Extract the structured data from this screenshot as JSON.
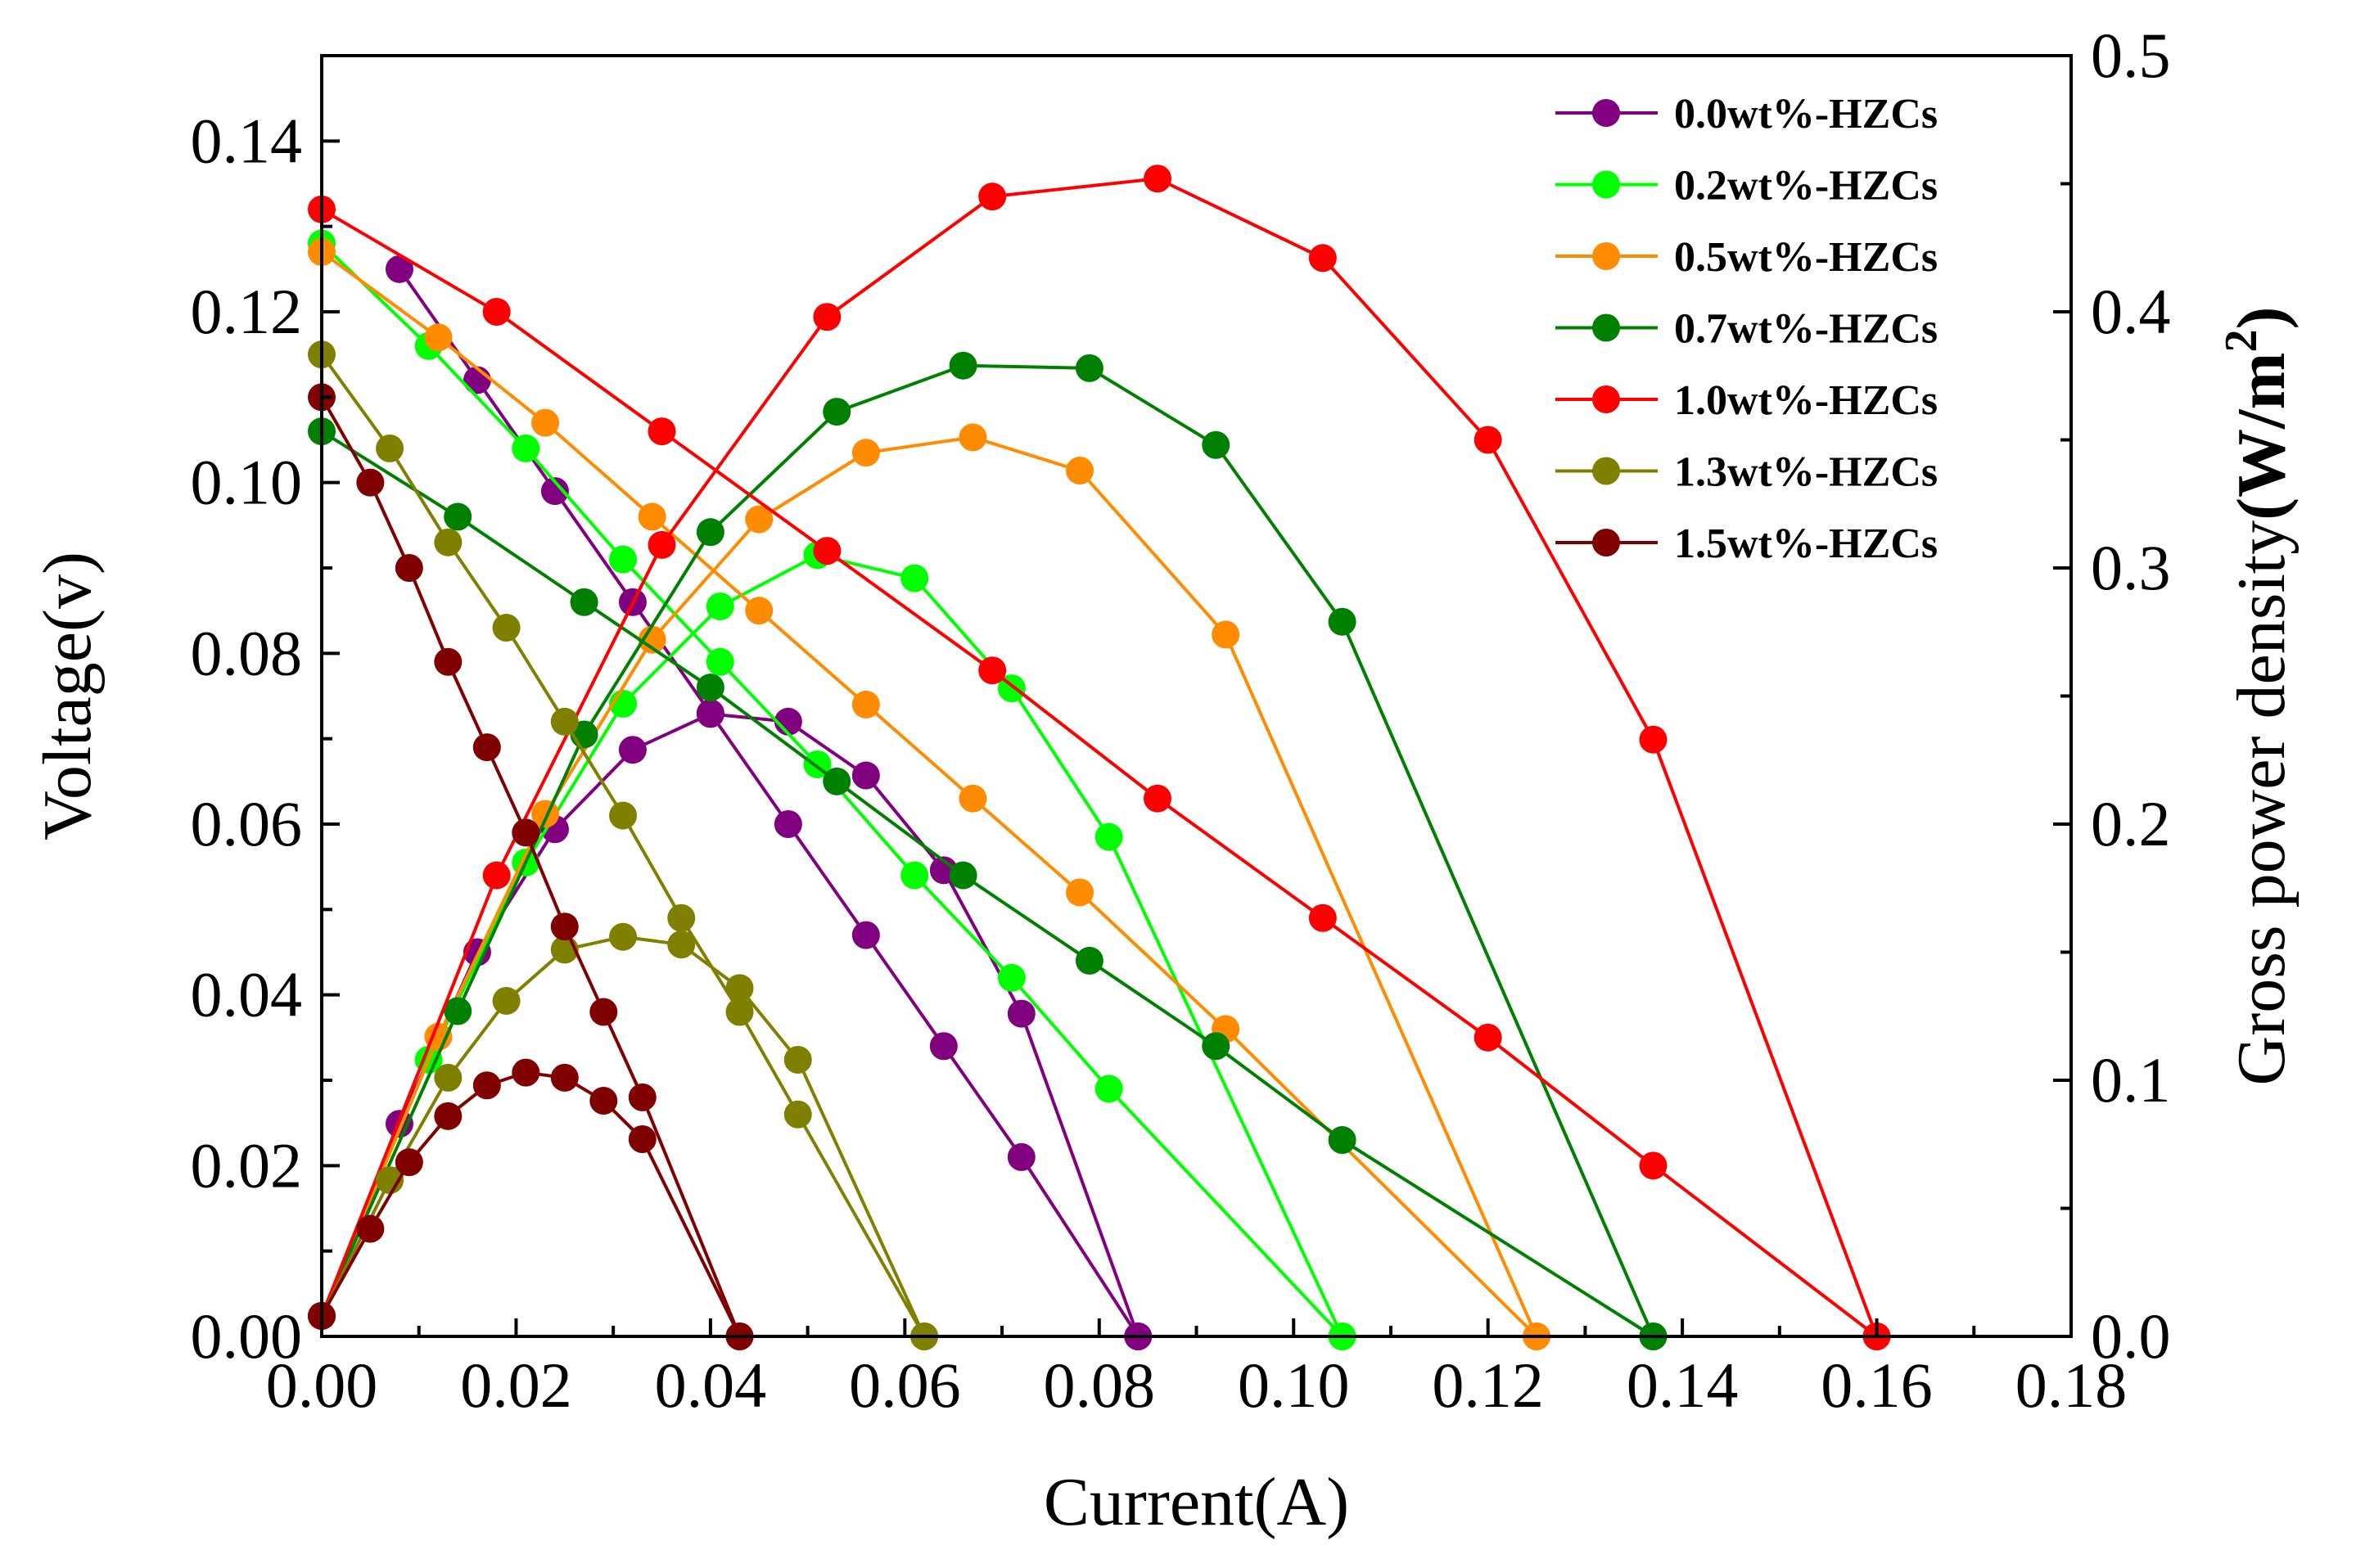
{
  "chart_data": {
    "type": "line",
    "title": "",
    "xlabel": "Current(A)",
    "ylabel_left": "Voltage(v)",
    "ylabel_right_main": "Gross power density",
    "ylabel_right_unit": "(W/m",
    "ylabel_right_sup": "2",
    "ylabel_right_close": ")",
    "xlim": [
      0.0,
      0.18
    ],
    "ylim_left": [
      0.0,
      0.15
    ],
    "ylim_right": [
      0.0,
      0.5
    ],
    "x_ticks": [
      0.0,
      0.02,
      0.04,
      0.06,
      0.08,
      0.1,
      0.12,
      0.14,
      0.16,
      0.18
    ],
    "x_tick_labels": [
      "0.00",
      "0.02",
      "0.04",
      "0.06",
      "0.08",
      "0.10",
      "0.12",
      "0.14",
      "0.16",
      "0.18"
    ],
    "y_left_ticks": [
      0.0,
      0.02,
      0.04,
      0.06,
      0.08,
      0.1,
      0.12,
      0.14
    ],
    "y_left_tick_labels": [
      "0.00",
      "0.02",
      "0.04",
      "0.06",
      "0.08",
      "0.10",
      "0.12",
      "0.14"
    ],
    "y_right_ticks": [
      0.0,
      0.1,
      0.2,
      0.3,
      0.4,
      0.5
    ],
    "y_right_tick_labels": [
      "0.0",
      "0.1",
      "0.2",
      "0.3",
      "0.4",
      "0.5"
    ],
    "legend_position": "top-right",
    "series": [
      {
        "name": "0.0wt%-HZCs",
        "color": "#800080",
        "voltage": {
          "x": [
            0.008,
            0.016,
            0.024,
            0.032,
            0.04,
            0.048,
            0.056,
            0.064,
            0.072,
            0.084
          ],
          "y": [
            0.125,
            0.112,
            0.099,
            0.086,
            0.073,
            0.06,
            0.047,
            0.034,
            0.021,
            0.0
          ]
        },
        "power": {
          "x": [
            0.008,
            0.016,
            0.024,
            0.032,
            0.04,
            0.048,
            0.056,
            0.064,
            0.072,
            0.084
          ],
          "y": [
            0.083,
            0.15,
            0.198,
            0.229,
            0.243,
            0.24,
            0.219,
            0.182,
            0.126,
            0.0
          ]
        }
      },
      {
        "name": "0.2wt%-HZCs",
        "color": "#00FF00",
        "voltage": {
          "x": [
            0.0,
            0.011,
            0.021,
            0.031,
            0.041,
            0.051,
            0.061,
            0.071,
            0.081,
            0.105
          ],
          "y": [
            0.128,
            0.116,
            0.104,
            0.091,
            0.079,
            0.067,
            0.054,
            0.042,
            0.029,
            0.0
          ]
        },
        "power": {
          "x": [
            0.0,
            0.011,
            0.021,
            0.031,
            0.041,
            0.051,
            0.061,
            0.071,
            0.081,
            0.105
          ],
          "y": [
            0.008,
            0.108,
            0.185,
            0.247,
            0.285,
            0.305,
            0.296,
            0.253,
            0.195,
            0.0
          ]
        }
      },
      {
        "name": "0.5wt%-HZCs",
        "color": "#FF8C00",
        "voltage": {
          "x": [
            0.0,
            0.012,
            0.023,
            0.034,
            0.045,
            0.056,
            0.067,
            0.078,
            0.093,
            0.125
          ],
          "y": [
            0.127,
            0.117,
            0.107,
            0.096,
            0.085,
            0.074,
            0.063,
            0.052,
            0.036,
            0.0
          ]
        },
        "power": {
          "x": [
            0.0,
            0.012,
            0.023,
            0.034,
            0.045,
            0.056,
            0.067,
            0.078,
            0.093,
            0.125
          ],
          "y": [
            0.008,
            0.117,
            0.204,
            0.272,
            0.319,
            0.345,
            0.351,
            0.338,
            0.274,
            0.0
          ]
        }
      },
      {
        "name": "0.7wt%-HZCs",
        "color": "#008000",
        "voltage": {
          "x": [
            0.0,
            0.014,
            0.027,
            0.04,
            0.053,
            0.066,
            0.079,
            0.092,
            0.105,
            0.137
          ],
          "y": [
            0.106,
            0.096,
            0.086,
            0.076,
            0.065,
            0.054,
            0.044,
            0.034,
            0.023,
            0.0
          ]
        },
        "power": {
          "x": [
            0.0,
            0.014,
            0.027,
            0.04,
            0.053,
            0.066,
            0.079,
            0.092,
            0.105,
            0.137
          ],
          "y": [
            0.008,
            0.127,
            0.235,
            0.314,
            0.361,
            0.379,
            0.378,
            0.348,
            0.279,
            0.0
          ]
        }
      },
      {
        "name": "1.0wt%-HZCs",
        "color": "#FF0000",
        "voltage": {
          "x": [
            0.0,
            0.018,
            0.035,
            0.052,
            0.069,
            0.086,
            0.103,
            0.12,
            0.137,
            0.16
          ],
          "y": [
            0.132,
            0.12,
            0.106,
            0.092,
            0.078,
            0.063,
            0.049,
            0.035,
            0.02,
            0.0
          ]
        },
        "power": {
          "x": [
            0.0,
            0.018,
            0.035,
            0.052,
            0.069,
            0.086,
            0.103,
            0.12,
            0.137,
            0.16
          ],
          "y": [
            0.008,
            0.18,
            0.309,
            0.398,
            0.445,
            0.452,
            0.421,
            0.35,
            0.233,
            0.0
          ]
        }
      },
      {
        "name": "1.3wt%-HZCs",
        "color": "#808000",
        "voltage": {
          "x": [
            0.0,
            0.007,
            0.013,
            0.019,
            0.025,
            0.031,
            0.037,
            0.043,
            0.049,
            0.062
          ],
          "y": [
            0.115,
            0.104,
            0.093,
            0.083,
            0.072,
            0.061,
            0.049,
            0.038,
            0.026,
            0.0
          ]
        },
        "power": {
          "x": [
            0.0,
            0.007,
            0.013,
            0.019,
            0.025,
            0.031,
            0.037,
            0.043,
            0.049,
            0.062
          ],
          "y": [
            0.008,
            0.061,
            0.101,
            0.131,
            0.151,
            0.156,
            0.153,
            0.136,
            0.108,
            0.0
          ]
        }
      },
      {
        "name": "1.5wt%-HZCs",
        "color": "#800000",
        "voltage": {
          "x": [
            0.0,
            0.005,
            0.009,
            0.013,
            0.017,
            0.021,
            0.025,
            0.029,
            0.033,
            0.043
          ],
          "y": [
            0.11,
            0.1,
            0.09,
            0.079,
            0.069,
            0.059,
            0.048,
            0.038,
            0.028,
            0.0
          ]
        },
        "power": {
          "x": [
            0.0,
            0.005,
            0.009,
            0.013,
            0.017,
            0.021,
            0.025,
            0.029,
            0.033,
            0.043
          ],
          "y": [
            0.008,
            0.042,
            0.068,
            0.086,
            0.098,
            0.103,
            0.101,
            0.092,
            0.077,
            0.0
          ]
        }
      }
    ]
  }
}
